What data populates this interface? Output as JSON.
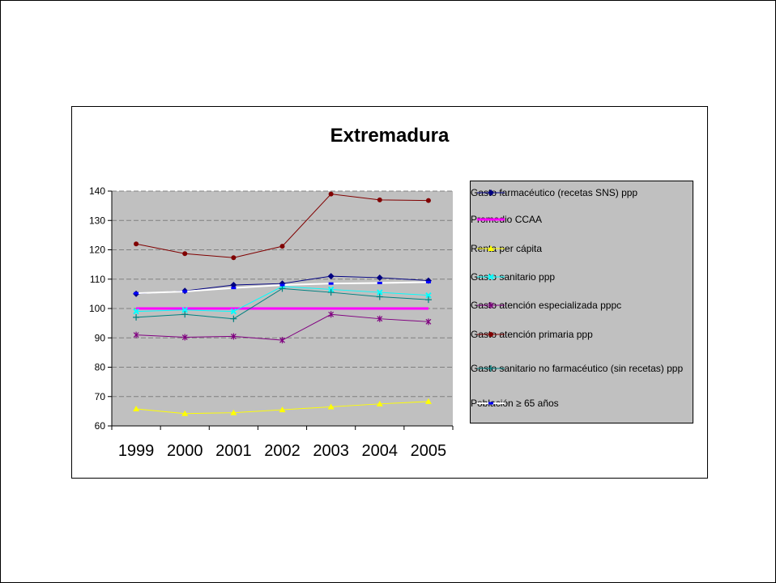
{
  "chart_data": {
    "type": "line",
    "title": "Extremadura",
    "xlabel": "",
    "ylabel": "",
    "categories": [
      "1999",
      "2000",
      "2001",
      "2002",
      "2003",
      "2004",
      "2005"
    ],
    "ylim": [
      60,
      140
    ],
    "yticks": [
      "60",
      "70",
      "80",
      "90",
      "100",
      "110",
      "120",
      "130",
      "140"
    ],
    "grid": true,
    "legend_position": "right",
    "plot_background": "#c0c0c0",
    "series": [
      {
        "name": "Gasto farmacéutico (recetas SNS) ppp",
        "color": "#000080",
        "marker": "diamond",
        "values": [
          105,
          106,
          108,
          108.5,
          111,
          110.5,
          109.5
        ]
      },
      {
        "name": "Promedio CCAA",
        "color": "#ff00ff",
        "marker": "none",
        "values": [
          100,
          100,
          100,
          100,
          100,
          100,
          100
        ]
      },
      {
        "name": "Renta per cápita",
        "color": "#ffff00",
        "marker": "triangle",
        "values": [
          65.8,
          64.2,
          64.5,
          65.5,
          66.5,
          67.5,
          68.3
        ]
      },
      {
        "name": "Gasto sanitario ppp",
        "color": "#00ffff",
        "marker": "x",
        "values": [
          99,
          99.5,
          99,
          107.5,
          106.5,
          105.5,
          104.5
        ]
      },
      {
        "name": "Gasto atención especializada pppc",
        "color": "#800080",
        "marker": "star",
        "values": [
          91,
          90.2,
          90.5,
          89.2,
          98,
          96.5,
          95.5
        ]
      },
      {
        "name": "Gasto atención primaria ppp",
        "color": "#800000",
        "marker": "circle",
        "values": [
          122,
          118.7,
          117.3,
          121.2,
          139,
          137,
          136.8
        ]
      },
      {
        "name": "Gasto sanitario no farmacéutico (sin recetas) ppp",
        "color": "#008080",
        "marker": "plus",
        "values": [
          97,
          98,
          96.5,
          106.8,
          105.5,
          104,
          103
        ]
      },
      {
        "name": "Población ≥ 65 años",
        "color": "#ffffff",
        "marker": "dash",
        "values": [
          105.2,
          105.8,
          107,
          108,
          108.5,
          108.7,
          109
        ]
      }
    ]
  }
}
